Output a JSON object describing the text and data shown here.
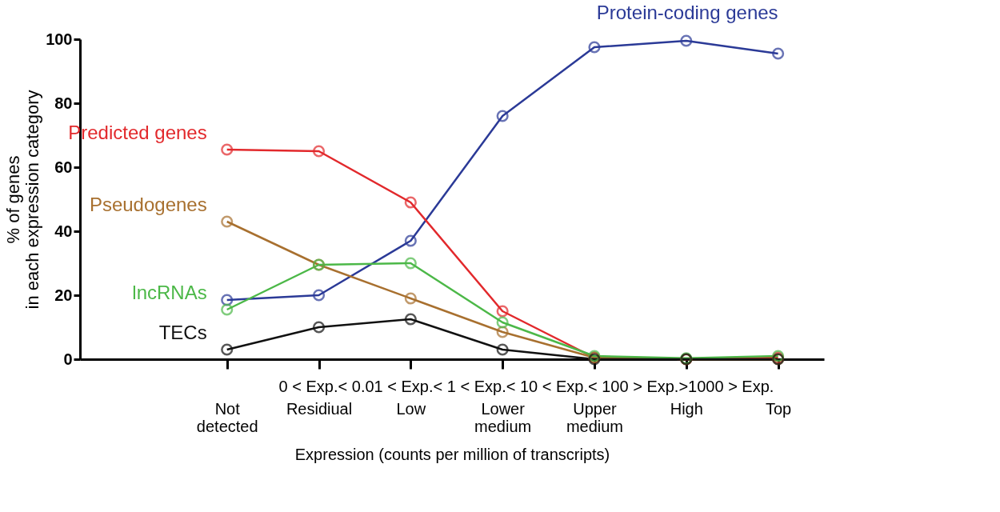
{
  "chart_data": {
    "type": "line",
    "xlabel": "Expression (counts per million of transcripts)",
    "ylabel": "% of genes in each expression category",
    "categories": [
      "Not detected",
      "Residiual",
      "Low",
      "Lower medium",
      "Upper medium",
      "High",
      "Top"
    ],
    "series": [
      {
        "name": "Protein-coding genes",
        "color": "#2b3a97",
        "values": [
          18.5,
          20,
          37,
          76,
          97.5,
          99.5,
          95.5
        ]
      },
      {
        "name": "Predicted genes",
        "color": "#e2292c",
        "values": [
          65.5,
          65,
          49,
          15,
          0.5,
          0,
          0.5
        ]
      },
      {
        "name": "Pseudogenes",
        "color": "#a8702f",
        "values": [
          43,
          29.5,
          19,
          8.5,
          0.5,
          0,
          0
        ]
      },
      {
        "name": "lncRNAs",
        "color": "#4cb848",
        "values": [
          15.5,
          29.5,
          30,
          11.5,
          1,
          0.3,
          1
        ]
      },
      {
        "name": "TECs",
        "color": "#111111",
        "values": [
          3,
          10,
          12.5,
          3,
          0,
          0,
          0
        ]
      }
    ],
    "ylim": [
      0,
      100
    ],
    "yticks": [
      0,
      20,
      40,
      60,
      80,
      100
    ],
    "grid": false,
    "marker": "circle",
    "line_style": "solid",
    "annotations": [
      "0  < Exp.< 0.01 < Exp.< 1  < Exp.<  10 < Exp.< 100 > Exp.>1000 > Exp."
    ]
  }
}
